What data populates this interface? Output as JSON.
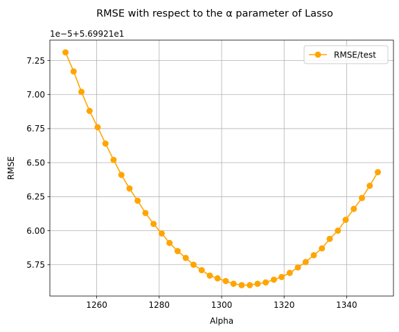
{
  "chart_data": {
    "type": "line",
    "title": "RMSE with respect to the α parameter of Lasso",
    "xlabel": "Alpha",
    "ylabel": "RMSE",
    "offset_label": "1e−5+5.69921e1",
    "xlim": [
      1245,
      1355
    ],
    "ylim": [
      5.52,
      7.4
    ],
    "x_ticks": [
      "1260",
      "1280",
      "1300",
      "1320",
      "1340"
    ],
    "x_tick_values": [
      1260,
      1280,
      1300,
      1320,
      1340
    ],
    "y_ticks": [
      "5.75",
      "6.00",
      "6.25",
      "6.50",
      "6.75",
      "7.00",
      "7.25"
    ],
    "y_tick_values": [
      5.75,
      6.0,
      6.25,
      6.5,
      6.75,
      7.0,
      7.25
    ],
    "grid": true,
    "legend_position": "top-right",
    "color": "#ffa500",
    "series": [
      {
        "name": "RMSE/test",
        "x": [
          1250.0,
          1252.6,
          1255.1,
          1257.7,
          1260.3,
          1262.8,
          1265.4,
          1267.9,
          1270.5,
          1273.1,
          1275.6,
          1278.2,
          1280.8,
          1283.3,
          1285.9,
          1288.5,
          1291.0,
          1293.6,
          1296.2,
          1298.7,
          1301.3,
          1303.8,
          1306.4,
          1309.0,
          1311.5,
          1314.1,
          1316.7,
          1319.2,
          1321.8,
          1324.4,
          1326.9,
          1329.5,
          1332.1,
          1334.6,
          1337.2,
          1339.7,
          1342.3,
          1344.9,
          1347.4,
          1350.0
        ],
        "values": [
          7.31,
          7.17,
          7.02,
          6.88,
          6.76,
          6.64,
          6.52,
          6.41,
          6.31,
          6.22,
          6.13,
          6.05,
          5.98,
          5.91,
          5.85,
          5.8,
          5.75,
          5.71,
          5.67,
          5.65,
          5.63,
          5.61,
          5.6,
          5.6,
          5.61,
          5.62,
          5.64,
          5.66,
          5.69,
          5.73,
          5.77,
          5.82,
          5.87,
          5.94,
          6.0,
          6.08,
          6.16,
          6.24,
          6.33,
          6.43
        ]
      }
    ]
  }
}
